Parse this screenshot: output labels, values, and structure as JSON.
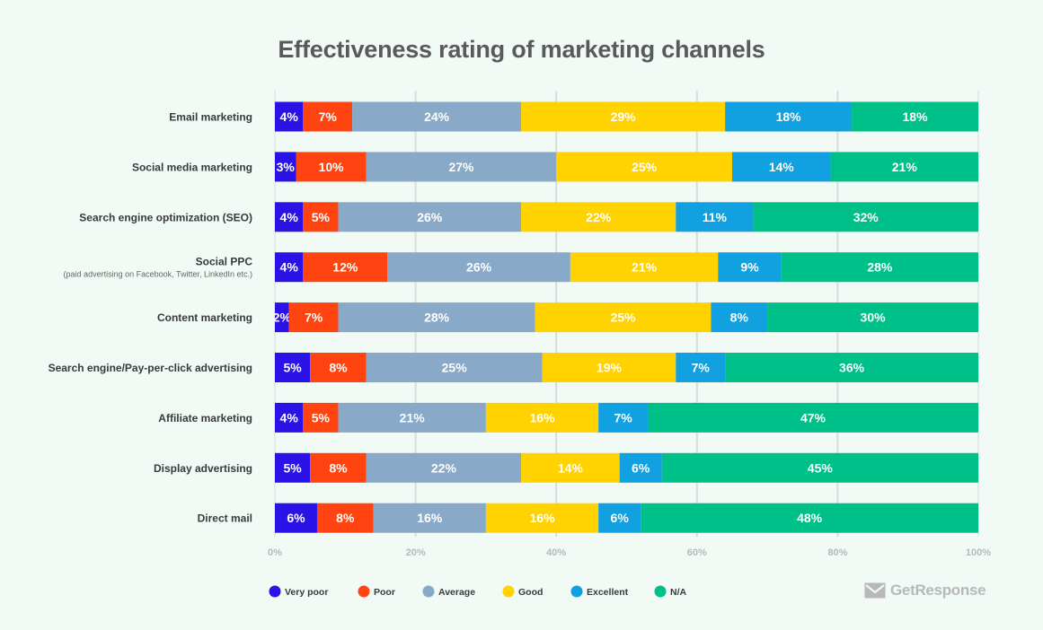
{
  "title": "Effectiveness rating of marketing channels",
  "brand": {
    "name": "GetResponse",
    "icon": "envelope-icon"
  },
  "colors": {
    "Very poor": "#2b12e6",
    "Poor": "#ff4411",
    "Average": "#88a9c8",
    "Good": "#ffd200",
    "Excellent": "#11a0e0",
    "N/A": "#00c089",
    "background": "#f1faf5",
    "grid": "#d8dcda",
    "label": "#3a3a3a",
    "tick": "#b8b8b8"
  },
  "chart_data": {
    "type": "bar",
    "orientation": "horizontal",
    "stacked": true,
    "title": "Effectiveness rating of marketing channels",
    "categories": [
      "Email marketing",
      "Social media marketing",
      "Search engine optimization (SEO)",
      "Social PPC",
      "Content marketing",
      "Search engine/Pay-per-click advertising",
      "Affiliate marketing",
      "Display advertising",
      "Direct mail"
    ],
    "category_sublabels": [
      "",
      "",
      "",
      "(paid advertising on Facebook, Twitter, LinkedIn etc.)",
      "",
      "",
      "",
      "",
      ""
    ],
    "series": [
      {
        "name": "Very poor",
        "values": [
          4,
          3,
          4,
          4,
          2,
          5,
          4,
          5,
          6
        ]
      },
      {
        "name": "Poor",
        "values": [
          7,
          10,
          5,
          12,
          7,
          8,
          5,
          8,
          8
        ]
      },
      {
        "name": "Average",
        "values": [
          24,
          27,
          26,
          26,
          28,
          25,
          21,
          22,
          16
        ]
      },
      {
        "name": "Good",
        "values": [
          29,
          25,
          22,
          21,
          25,
          19,
          16,
          14,
          16
        ]
      },
      {
        "name": "Excellent",
        "values": [
          18,
          14,
          11,
          9,
          8,
          7,
          7,
          6,
          6
        ]
      },
      {
        "name": "N/A",
        "values": [
          18,
          21,
          32,
          28,
          30,
          36,
          47,
          45,
          48
        ]
      }
    ],
    "xlim": [
      0,
      100
    ],
    "xticks": [
      "0%",
      "20%",
      "40%",
      "60%",
      "80%",
      "100%"
    ],
    "grid": true,
    "legend": "bottom-left",
    "data_labels": true
  }
}
